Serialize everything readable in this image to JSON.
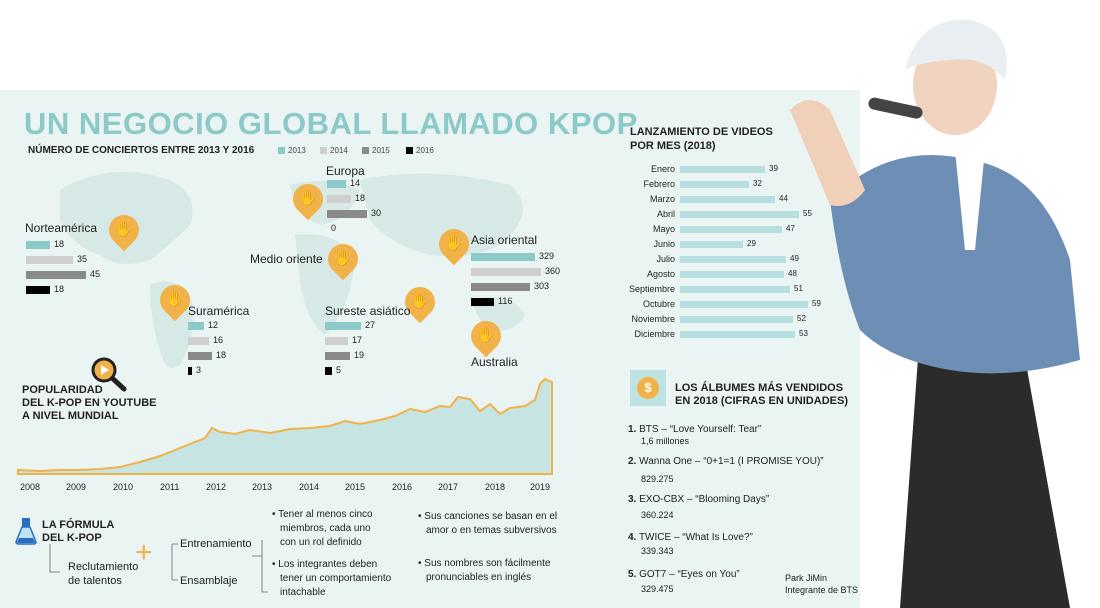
{
  "title": "UN NEGOCIO GLOBAL LLAMADO KPOP",
  "concerts": {
    "subtitle": "NÚMERO DE CONCIERTOS ENTRE 2013 Y 2016",
    "legend": [
      "2013",
      "2014",
      "2015",
      "2016"
    ],
    "regions": [
      {
        "name": "Norteamérica",
        "values": [
          18,
          35,
          45,
          18
        ]
      },
      {
        "name": "Europa",
        "values": [
          14,
          18,
          30,
          0
        ]
      },
      {
        "name": "Medio oriente",
        "values": []
      },
      {
        "name": "Asia oriental",
        "values": [
          329,
          360,
          303,
          116
        ]
      },
      {
        "name": "Suramérica",
        "values": [
          12,
          16,
          18,
          3
        ]
      },
      {
        "name": "Sureste asiático",
        "values": [
          27,
          17,
          19,
          5
        ]
      },
      {
        "name": "Australia",
        "values": []
      }
    ]
  },
  "youtube": {
    "title": [
      "POPULARIDAD",
      "DEL K-POP EN YOUTUBE",
      "A NIVEL MUNDIAL"
    ],
    "years": [
      "2008",
      "2009",
      "2010",
      "2011",
      "2012",
      "2013",
      "2014",
      "2015",
      "2016",
      "2017",
      "2018",
      "2019"
    ]
  },
  "chart_data": {
    "type": "bar",
    "title": "LANZAMIENTO DE VIDEOS POR MES (2018)",
    "title_lines": [
      "LANZAMIENTO DE VIDEOS",
      "POR MES (2018)"
    ],
    "categories": [
      "Enero",
      "Febrero",
      "Marzo",
      "Abril",
      "Mayo",
      "Junio",
      "Julio",
      "Agosto",
      "Septiembre",
      "Octubre",
      "Noviembre",
      "Diciembre"
    ],
    "values": [
      39,
      32,
      44,
      55,
      47,
      29,
      49,
      48,
      51,
      59,
      52,
      53
    ],
    "orientation": "horizontal",
    "xlim": [
      0,
      60
    ]
  },
  "albums": {
    "title": [
      "LOS ÁLBUMES MÁS VENDIDOS",
      "EN 2018 (CIFRAS EN UNIDADES)"
    ],
    "coin_symbol": "$",
    "items": [
      {
        "rank": "1.",
        "name": "BTS – “Love Yourself: Tear”",
        "sales": "1,6 millones"
      },
      {
        "rank": "2.",
        "name": "Wanna One – “0+1=1 (I PROMISE YOU)”",
        "sales": "829.275"
      },
      {
        "rank": "3.",
        "name": "EXO-CBX – “Blooming Days”",
        "sales": "360.224"
      },
      {
        "rank": "4.",
        "name": "TWICE – “What Is Love?”",
        "sales": "339.343"
      },
      {
        "rank": "5.",
        "name": "GOT7 – “Eyes on You”",
        "sales": "329.475"
      }
    ]
  },
  "formula": {
    "title": [
      "LA FÓRMULA",
      "DEL K-POP"
    ],
    "recruit": [
      "Reclutamiento",
      "de talentos"
    ],
    "plus": "+",
    "steps": [
      "Entrenamiento",
      "Ensamblaje"
    ],
    "requirements": [
      [
        "Tener al menos cinco",
        "miembros, cada uno",
        "con un rol definido"
      ],
      [
        "Los integrantes deben",
        "tener un comportamiento",
        "intachable"
      ],
      [
        "Sus canciones se basan en el",
        "amor o en temas subversivos"
      ],
      [
        "Sus nombres son fácilmente",
        "pronunciables en inglés"
      ]
    ]
  },
  "photo_caption": {
    "name": "Park JiMin",
    "role": "Integrante de BTS"
  },
  "colors": {
    "accent": "#8cc9c9",
    "gold": "#f2b24a",
    "bar_light": "#b7dfe0",
    "y2014": "#cfcfcf",
    "y2015": "#8a8a8a",
    "y2016": "#000000"
  }
}
